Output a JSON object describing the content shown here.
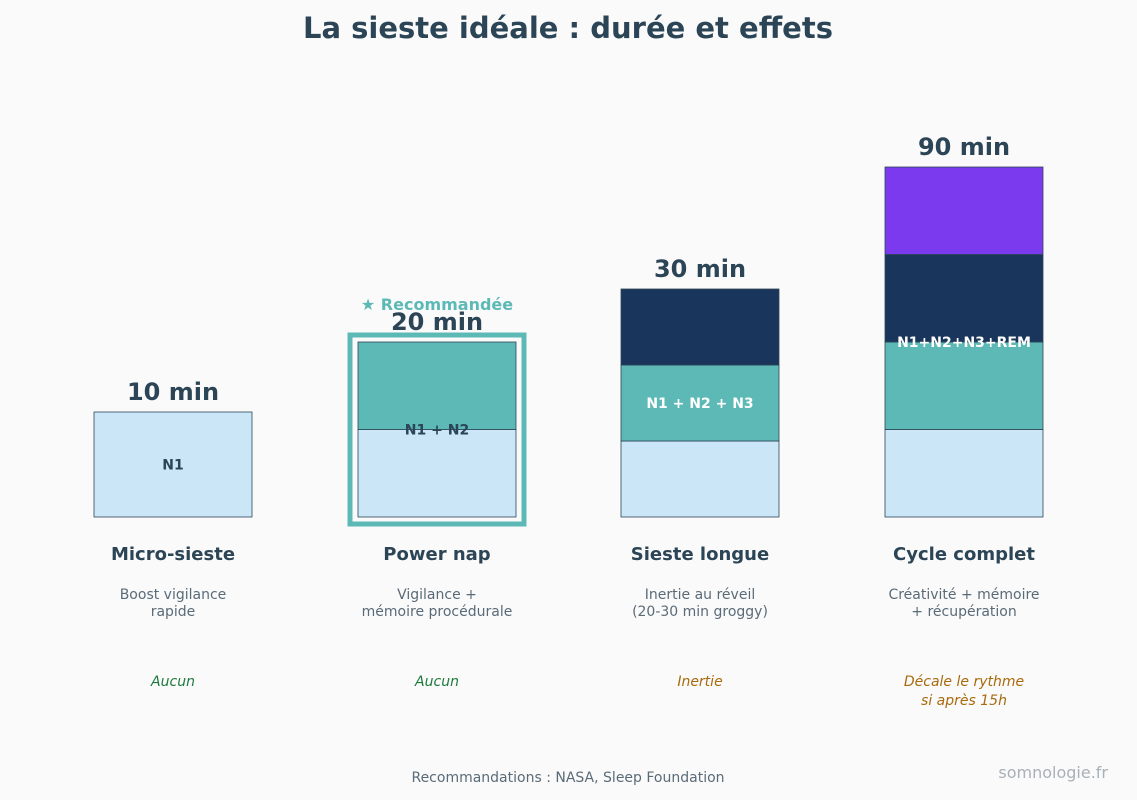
{
  "title": "La sieste idéale : durée et effets",
  "source": "Recommandations : NASA, Sleep Foundation",
  "brand": "somnologie.fr",
  "recommended_label": "★ Recommandée",
  "colors": {
    "N1": "#cae6f7",
    "N2": "#5cb9b6",
    "N3": "#1a355c",
    "REM": "#7b3aee",
    "highlight": "#5cb9b6",
    "side_none": "#1e7a3c",
    "side_warn": "#a86a0c"
  },
  "chart_data": {
    "type": "bar",
    "stacked": true,
    "title": "La sieste idéale : durée et effets",
    "stages": [
      "N1",
      "N2",
      "N3",
      "REM"
    ],
    "categories": [
      "Micro-sieste",
      "Power nap",
      "Sieste longue",
      "Cycle complet"
    ],
    "bars": [
      {
        "name": "Micro-sieste",
        "duration_label": "10 min",
        "stage_label": "N1",
        "segments": [
          {
            "stage": "N1",
            "minutes": 10
          }
        ],
        "effect": [
          "Boost vigilance",
          "rapide"
        ],
        "side_effect": [
          "Aucun"
        ],
        "side_level": "none",
        "recommended": false
      },
      {
        "name": "Power nap",
        "duration_label": "20 min",
        "stage_label": "N1 + N2",
        "segments": [
          {
            "stage": "N1",
            "minutes": 10
          },
          {
            "stage": "N2",
            "minutes": 10
          }
        ],
        "effect": [
          "Vigilance +",
          "mémoire procédurale"
        ],
        "side_effect": [
          "Aucun"
        ],
        "side_level": "none",
        "recommended": true
      },
      {
        "name": "Sieste longue",
        "duration_label": "30 min",
        "stage_label": "N1 + N2 + N3",
        "segments": [
          {
            "stage": "N1",
            "minutes": 10
          },
          {
            "stage": "N2",
            "minutes": 10
          },
          {
            "stage": "N3",
            "minutes": 10
          }
        ],
        "effect": [
          "Inertie au réveil",
          "(20-30 min groggy)"
        ],
        "side_effect": [
          "Inertie"
        ],
        "side_level": "warn",
        "recommended": false
      },
      {
        "name": "Cycle complet",
        "duration_label": "90 min",
        "stage_label": "N1+N2+N3+REM",
        "segments": [
          {
            "stage": "N1",
            "minutes": 22.5
          },
          {
            "stage": "N2",
            "minutes": 22.5
          },
          {
            "stage": "N3",
            "minutes": 22.5
          },
          {
            "stage": "REM",
            "minutes": 22.5
          }
        ],
        "effect": [
          "Créativité + mémoire",
          "+ récupération"
        ],
        "side_effect": [
          "Décale le rythme",
          "si après 15h"
        ],
        "side_level": "warn",
        "recommended": false
      }
    ]
  }
}
